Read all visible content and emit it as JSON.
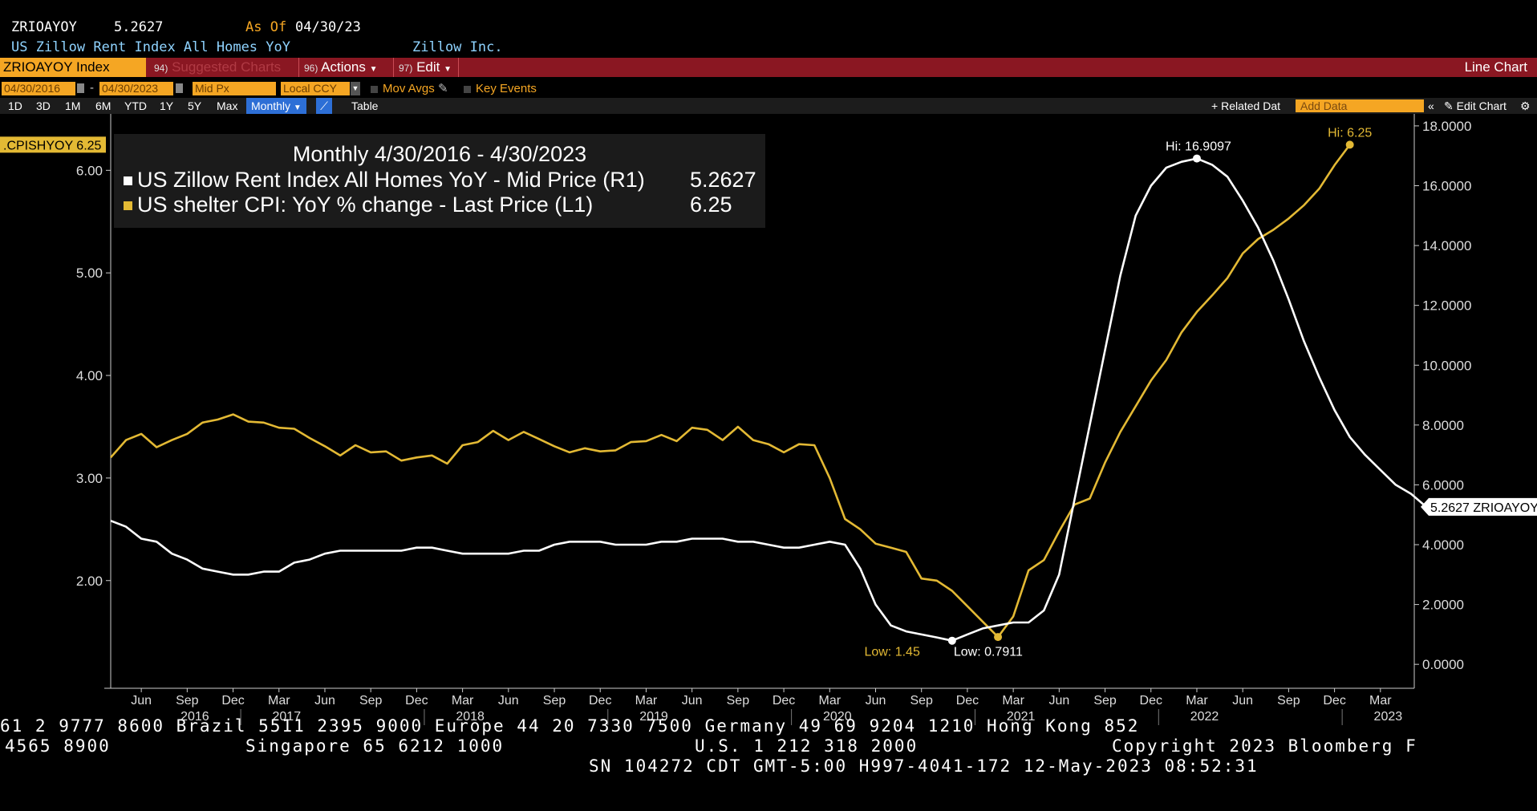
{
  "header": {
    "ticker": "ZRIOAYOY",
    "last_value": "5.2627",
    "as_of_label": "As Of",
    "as_of_date": "04/30/23",
    "security_name": "US Zillow Rent Index All Homes YoY",
    "source": "Zillow Inc."
  },
  "toolbar": {
    "ticker_field": "ZRIOAYOY Index",
    "suggested_num": "94)",
    "suggested_label": "Suggested Charts",
    "actions_num": "96)",
    "actions_label": "Actions",
    "edit_num": "97)",
    "edit_label": "Edit",
    "chart_type": "Line Chart"
  },
  "settings": {
    "start_date": "04/30/2016",
    "end_date": "04/30/2023",
    "price_type": "Mid Px",
    "currency": "Local CCY",
    "mov_avgs": "Mov Avgs",
    "key_events": "Key Events"
  },
  "periods": {
    "ranges": [
      "1D",
      "3D",
      "1M",
      "6M",
      "YTD",
      "1Y",
      "5Y",
      "Max"
    ],
    "frequency": "Monthly",
    "table": "Table",
    "related_data": "Related Dat",
    "add_data_placeholder": "Add Data",
    "edit_chart": "Edit Chart"
  },
  "colors": {
    "zillow": "#ffffff",
    "cpi": "#e3b934",
    "accent": "#f5a623",
    "toolbar": "#8a1722"
  },
  "chart_data": {
    "type": "line",
    "title": "Monthly 4/30/2016 - 4/30/2023",
    "series": [
      {
        "name": "US Zillow Rent Index All Homes YoY - Mid Price (R1)",
        "axis": "right",
        "color": "#ffffff",
        "last": "5.2627",
        "start": "2016-04",
        "values": [
          4.8,
          4.6,
          4.2,
          4.1,
          3.7,
          3.5,
          3.2,
          3.1,
          3.0,
          3.0,
          3.1,
          3.1,
          3.4,
          3.5,
          3.7,
          3.8,
          3.8,
          3.8,
          3.8,
          3.8,
          3.9,
          3.9,
          3.8,
          3.7,
          3.7,
          3.7,
          3.7,
          3.8,
          3.8,
          4.0,
          4.1,
          4.1,
          4.1,
          4.0,
          4.0,
          4.0,
          4.1,
          4.1,
          4.2,
          4.2,
          4.2,
          4.1,
          4.1,
          4.0,
          3.9,
          3.9,
          4.0,
          4.1,
          4.0,
          3.2,
          2.0,
          1.3,
          1.1,
          1.0,
          0.9,
          0.79,
          1.0,
          1.2,
          1.3,
          1.4,
          1.4,
          1.8,
          3.0,
          5.5,
          8.0,
          10.5,
          13.0,
          15.0,
          16.0,
          16.6,
          16.8,
          16.91,
          16.7,
          16.3,
          15.5,
          14.6,
          13.5,
          12.2,
          10.8,
          9.6,
          8.5,
          7.6,
          7.0,
          6.5,
          6.0,
          5.7,
          5.2627
        ]
      },
      {
        "name": "US shelter CPI: YoY % change - Last Price (L1)",
        "axis": "left",
        "color": "#e3b934",
        "last": "6.25",
        "start": "2016-04",
        "values": [
          3.2,
          3.37,
          3.43,
          3.3,
          3.37,
          3.43,
          3.54,
          3.57,
          3.62,
          3.55,
          3.54,
          3.49,
          3.48,
          3.39,
          3.31,
          3.22,
          3.32,
          3.25,
          3.26,
          3.17,
          3.2,
          3.22,
          3.14,
          3.32,
          3.35,
          3.46,
          3.37,
          3.45,
          3.38,
          3.31,
          3.25,
          3.29,
          3.26,
          3.27,
          3.35,
          3.36,
          3.42,
          3.36,
          3.49,
          3.47,
          3.37,
          3.5,
          3.37,
          3.33,
          3.25,
          3.33,
          3.32,
          3.0,
          2.6,
          2.5,
          2.36,
          2.32,
          2.28,
          2.02,
          2.0,
          1.9,
          1.75,
          1.6,
          1.45,
          1.65,
          2.1,
          2.2,
          2.48,
          2.74,
          2.8,
          3.15,
          3.45,
          3.7,
          3.95,
          4.15,
          4.42,
          4.62,
          4.78,
          4.95,
          5.19,
          5.33,
          5.42,
          5.53,
          5.66,
          5.82,
          6.05,
          6.25
        ]
      }
    ],
    "left_axis": {
      "ticks": [
        "2.00",
        "3.00",
        "4.00",
        "5.00",
        "6.00"
      ],
      "range": [
        0.95,
        6.55
      ]
    },
    "right_axis": {
      "ticks": [
        "0.0000",
        "2.0000",
        "4.0000",
        "6.0000",
        "8.0000",
        "10.0000",
        "12.0000",
        "14.0000",
        "16.0000",
        "18.0000"
      ],
      "range": [
        -0.8,
        18.4
      ]
    },
    "x_months": [
      "Jun",
      "Sep",
      "Dec",
      "Mar",
      "Jun",
      "Sep",
      "Dec",
      "Mar",
      "Jun",
      "Sep",
      "Dec",
      "Mar",
      "Jun",
      "Sep",
      "Dec",
      "Mar",
      "Jun",
      "Sep",
      "Dec",
      "Mar",
      "Jun",
      "Sep",
      "Dec",
      "Mar",
      "Jun",
      "Sep",
      "Dec",
      "Mar"
    ],
    "x_years": [
      "2016",
      "2017",
      "2018",
      "2019",
      "2020",
      "2021",
      "2022",
      "2023"
    ],
    "annotations": {
      "zillow_hi": "Hi: 16.9097",
      "cpi_hi": "Hi: 6.25",
      "zillow_low": "Low: 0.7911",
      "cpi_low": "Low: 1.45",
      "left_tag": ".CPISHYOY 6.25",
      "right_tag": "5.2627 ZRIOAYOY"
    }
  },
  "footer": {
    "line1": "61 2 9777 8600 Brazil 5511 2395 9000 Europe 44 20 7330 7500 Germany 49 69 9204 1210 Hong Kong 852",
    "line2a": "4565 8900",
    "line2b": "Singapore 65 6212 1000",
    "line2c": "U.S. 1 212 318 2000",
    "line2d": "Copyright 2023 Bloomberg F",
    "line3": "SN 104272 CDT  GMT-5:00 H997-4041-172 12-May-2023 08:52:31"
  }
}
